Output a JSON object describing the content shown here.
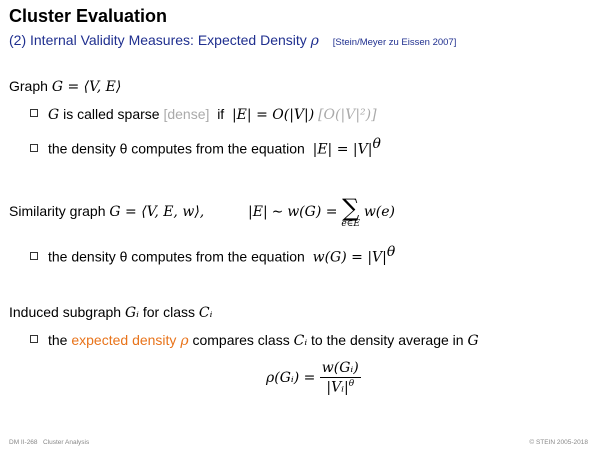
{
  "header": {
    "title": "Cluster Evaluation",
    "subtitle": "(2) Internal Validity Measures: Expected Density",
    "subtitle_symbol": "ρ",
    "reference": "[Stein/Meyer zu Eissen 2007]"
  },
  "graph": {
    "label": "Graph",
    "formula": "G = ⟨V, E⟩",
    "b1_g": "G",
    "b1_text": "is called sparse",
    "b1_dense": "[dense]",
    "b1_if": "if",
    "b1_formula": "|E| = O(|V|)",
    "b1_formula_dense": "[O(|V|²)]",
    "b2_text": "the density θ computes from the equation",
    "b2_formula": "|E| = |V|",
    "b2_exp": "θ"
  },
  "similarity": {
    "label": "Similarity graph",
    "formula": "G = ⟨V, E, w⟩,",
    "rel_left": "|E|",
    "rel_sim": "∼",
    "rel_mid": "w(G) =",
    "sum_symbol": "∑",
    "sum_sub": "e∈E",
    "sum_term": "w(e)",
    "b1_text": "the density θ computes from the equation",
    "b1_formula": "w(G) = |V|",
    "b1_exp": "θ"
  },
  "induced": {
    "label": "Induced subgraph",
    "gi": "Gᵢ",
    "for_class": "for class",
    "ci": "Cᵢ",
    "b1_pre": "the",
    "b1_highlight": "expected density",
    "b1_rho": "ρ",
    "b1_mid": "compares class",
    "b1_ci": "Cᵢ",
    "b1_post": "to the density average in",
    "b1_g": "G",
    "eq_lhs": "ρ(Gᵢ) =",
    "eq_num": "w(Gᵢ)",
    "eq_den": "|Vᵢ|",
    "eq_den_exp": "θ"
  },
  "footer": {
    "left_code": "DM II-268",
    "left_topic": "Cluster Analysis",
    "right": "© STEIN 2005-2018"
  }
}
